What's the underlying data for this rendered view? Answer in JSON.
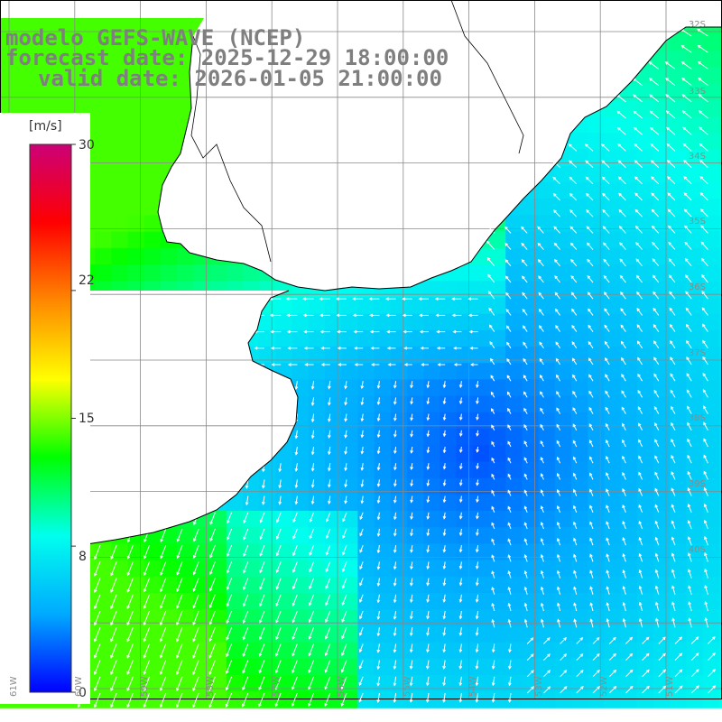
{
  "title": {
    "line1": "modelo GEFS-WAVE (NCEP)",
    "line2": "forecast date: 2025-12-29 18:00:00",
    "line3": "valid date: 2026-01-05 21:00:00"
  },
  "colorbar": {
    "unit": "[m/s]",
    "range": [
      0,
      30
    ],
    "ticks": [
      "30",
      "22",
      "15",
      "8",
      "0"
    ],
    "tick_values": [
      30,
      22,
      15,
      8,
      0
    ],
    "colors": [
      "#0000ff",
      "#00aaff",
      "#00ffee",
      "#00ff00",
      "#ffff00",
      "#ff8800",
      "#ff0000",
      "#cc0077"
    ]
  },
  "map": {
    "land_color": "#ffffff",
    "coast_color": "#000000",
    "grid_color": "#888888",
    "arrow_color": "#ffffff",
    "lat_labels": [
      "32S",
      "33S",
      "34S",
      "35S",
      "36S",
      "37S",
      "38S",
      "39S",
      "40S"
    ],
    "lon_labels": [
      "61W",
      "60W",
      "59W",
      "58W",
      "57W",
      "56W",
      "55W",
      "54W",
      "53W",
      "52W",
      "51W"
    ]
  }
}
